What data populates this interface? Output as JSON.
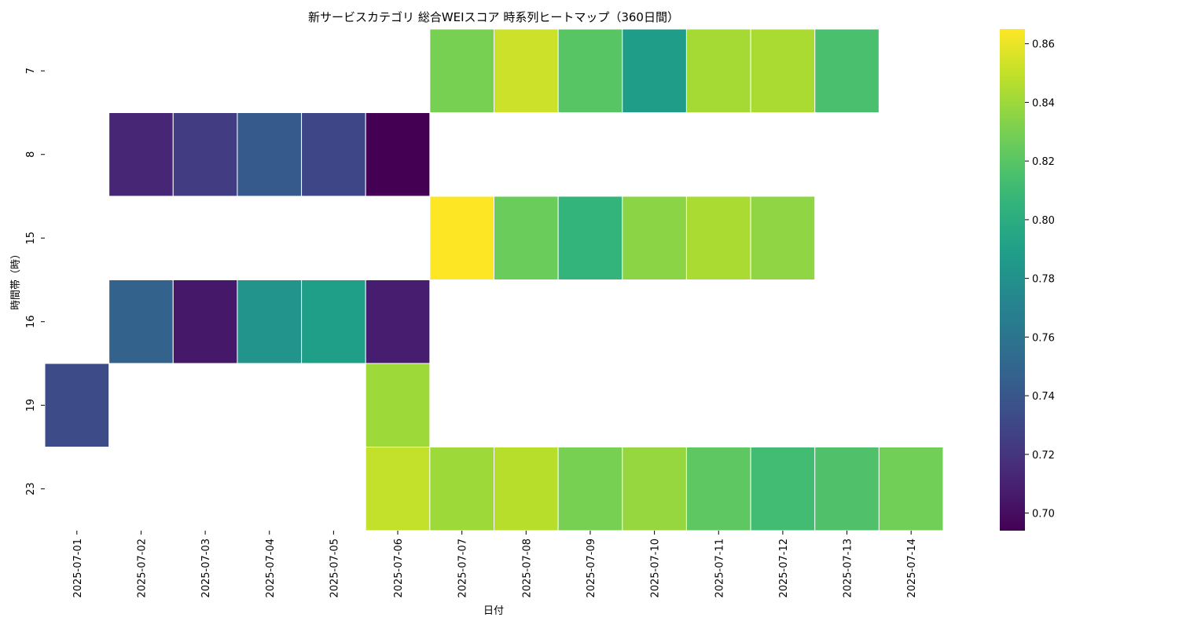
{
  "chart_data": {
    "type": "heatmap",
    "title": "新サービスカテゴリ 総合WEIスコア 時系列ヒートマップ（360日間）",
    "xlabel": "日付",
    "ylabel": "時間帯（時）",
    "x_categories": [
      "2025-07-01",
      "2025-07-02",
      "2025-07-03",
      "2025-07-04",
      "2025-07-05",
      "2025-07-06",
      "2025-07-07",
      "2025-07-08",
      "2025-07-09",
      "2025-07-10",
      "2025-07-11",
      "2025-07-12",
      "2025-07-13",
      "2025-07-14"
    ],
    "y_categories": [
      "7",
      "8",
      "15",
      "16",
      "19",
      "23"
    ],
    "values": [
      [
        null,
        null,
        null,
        null,
        null,
        null,
        0.83,
        0.852,
        0.82,
        0.788,
        0.842,
        0.843,
        0.815,
        null
      ],
      [
        null,
        0.712,
        0.724,
        0.742,
        0.73,
        0.694,
        null,
        null,
        null,
        null,
        null,
        null,
        null,
        null
      ],
      [
        null,
        null,
        null,
        null,
        null,
        null,
        0.865,
        0.826,
        0.806,
        0.835,
        0.843,
        0.836,
        null,
        null
      ],
      [
        null,
        0.748,
        0.705,
        0.782,
        0.79,
        0.708,
        null,
        null,
        null,
        null,
        null,
        null,
        null,
        null
      ],
      [
        0.733,
        null,
        null,
        null,
        null,
        0.84,
        null,
        null,
        null,
        null,
        null,
        null,
        null,
        null
      ],
      [
        null,
        null,
        null,
        null,
        null,
        0.85,
        0.84,
        0.847,
        0.83,
        0.838,
        0.822,
        0.812,
        0.817,
        0.828
      ]
    ],
    "colormap": "viridis",
    "colorbar": {
      "vmin": 0.694,
      "vmax": 0.865,
      "ticks": [
        0.7,
        0.72,
        0.74,
        0.76,
        0.78,
        0.8,
        0.82,
        0.84,
        0.86
      ],
      "tick_labels": [
        "0.70",
        "0.72",
        "0.74",
        "0.76",
        "0.78",
        "0.80",
        "0.82",
        "0.84",
        "0.86"
      ]
    },
    "grid": false,
    "legend": "none"
  }
}
